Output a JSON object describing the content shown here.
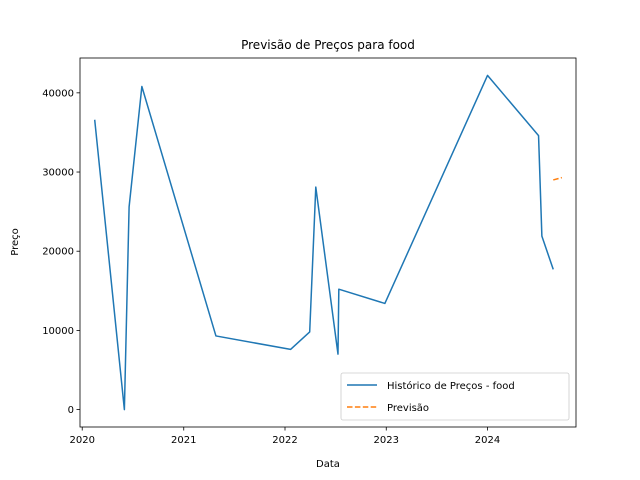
{
  "chart_data": {
    "type": "line",
    "title": "Previsão de Preços para food",
    "xlabel": "Data",
    "ylabel": "Preço",
    "xlim": [
      "2019-12-24",
      "2024-11-15"
    ],
    "ylim": [
      -2200,
      44400
    ],
    "x_ticks": [
      {
        "date": "2020-01-01",
        "label": "2020"
      },
      {
        "date": "2021-01-01",
        "label": "2021"
      },
      {
        "date": "2022-01-01",
        "label": "2022"
      },
      {
        "date": "2023-01-01",
        "label": "2023"
      },
      {
        "date": "2024-01-01",
        "label": "2024"
      }
    ],
    "y_ticks": [
      {
        "value": 0,
        "label": "0"
      },
      {
        "value": 10000,
        "label": "10000"
      },
      {
        "value": 20000,
        "label": "20000"
      },
      {
        "value": 30000,
        "label": "30000"
      },
      {
        "value": 40000,
        "label": "40000"
      }
    ],
    "grid": false,
    "legend_position": "bottom-right",
    "series": [
      {
        "name": "Histórico de Preços - food",
        "color": "#1f77b4",
        "style": "solid",
        "points": [
          {
            "x": "2020-02-15",
            "y": 36600
          },
          {
            "x": "2020-06-01",
            "y": 0
          },
          {
            "x": "2020-06-18",
            "y": 25600
          },
          {
            "x": "2020-08-03",
            "y": 40800
          },
          {
            "x": "2021-04-27",
            "y": 9300
          },
          {
            "x": "2022-01-21",
            "y": 7600
          },
          {
            "x": "2022-03-31",
            "y": 9800
          },
          {
            "x": "2022-04-22",
            "y": 28100
          },
          {
            "x": "2022-07-11",
            "y": 7000
          },
          {
            "x": "2022-07-14",
            "y": 15200
          },
          {
            "x": "2022-12-27",
            "y": 13400
          },
          {
            "x": "2024-01-01",
            "y": 42200
          },
          {
            "x": "2024-07-03",
            "y": 34600
          },
          {
            "x": "2024-07-15",
            "y": 21900
          },
          {
            "x": "2024-08-25",
            "y": 17700
          }
        ]
      },
      {
        "name": "Previsão",
        "color": "#ff7f0e",
        "style": "dashed",
        "points": [
          {
            "x": "2024-08-25",
            "y": 29000
          },
          {
            "x": "2024-09-25",
            "y": 29300
          }
        ]
      }
    ]
  }
}
